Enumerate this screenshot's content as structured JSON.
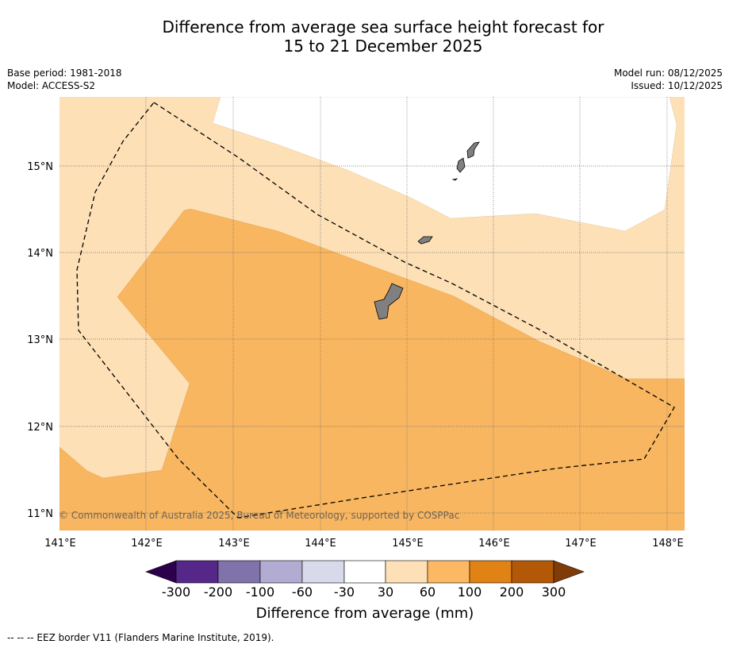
{
  "title": {
    "line1": "Difference from average sea surface height forecast for",
    "line2": "15 to 21 December 2025"
  },
  "meta": {
    "base_period": "Base period: 1981-2018",
    "model": "Model: ACCESS-S2",
    "model_run": "Model run: 08/12/2025",
    "issued": "Issued: 10/12/2025"
  },
  "map": {
    "lat_labels": [
      "15°N",
      "14°N",
      "13°N",
      "12°N",
      "11°N"
    ],
    "lon_labels": [
      "141°E",
      "142°E",
      "143°E",
      "144°E",
      "145°E",
      "146°E",
      "147°E",
      "148°E"
    ],
    "copyright": "© Commonwealth of Australia 2025, Bureau of Meteorology, supported by COSPPac",
    "colors": {
      "band_30_60": "#fde0b6",
      "band_60_100": "#f9b660",
      "land": "#808080",
      "white": "#ffffff"
    }
  },
  "colorbar": {
    "title": "Difference from average (mm)",
    "tick_labels": [
      "-300",
      "-200",
      "-100",
      "-60",
      "-30",
      "30",
      "60",
      "100",
      "200",
      "300"
    ],
    "colors": {
      "under": "#2d004b",
      "c1": "#542788",
      "c2": "#8073ac",
      "c3": "#b2abd2",
      "c4": "#d8daeb",
      "c5": "#ffffff",
      "c6": "#fee0b6",
      "c7": "#fdb863",
      "c8": "#e08214",
      "c9": "#b35806",
      "over": "#7f3b08"
    }
  },
  "footnote": "--  --  -- EEZ border V11 (Flanders Marine Institute, 2019)."
}
